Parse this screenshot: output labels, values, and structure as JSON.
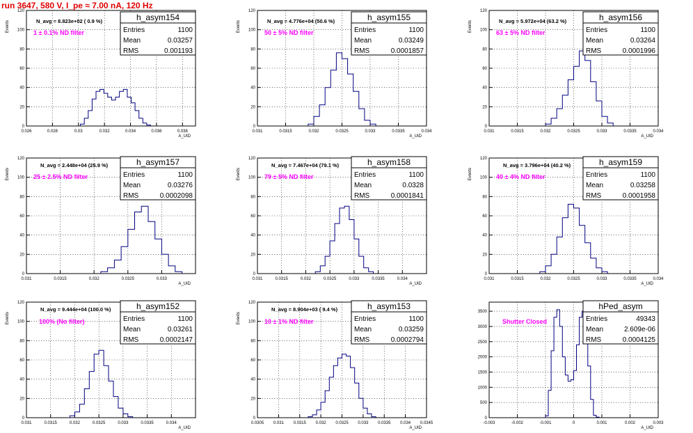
{
  "title": "run 3647,   580 V, I_pe ≈ 7.00 nA, 120 Hz",
  "stats_labels": [
    "Entries",
    "Mean",
    "RMS"
  ],
  "colors": {
    "histogram": "#000080",
    "title": "#e00000",
    "annotation": "#ff00ff"
  },
  "chart_data": [
    {
      "type": "histogram",
      "name": "h_asym154",
      "annotation": "N_avg = 8.823e+02 ( 0.9 %)",
      "filter": "1 ± 0.1% ND filter",
      "xlabel": "A_UID",
      "ylabel": "Events",
      "xlim": [
        0.026,
        0.039
      ],
      "ylim": [
        0,
        120
      ],
      "xticks": [
        "0.026",
        "0.028",
        "0.03",
        "0.032",
        "0.034",
        "0.036",
        "0.038"
      ],
      "yticks": [
        "0",
        "20",
        "40",
        "60",
        "80",
        "100",
        "120"
      ],
      "stats": {
        "Entries": "1100",
        "Mean": "0.03257",
        "RMS": "0.001193"
      },
      "x": [
        0.0303,
        0.0306,
        0.0309,
        0.0312,
        0.0315,
        0.0318,
        0.0321,
        0.0324,
        0.0327,
        0.033,
        0.0333,
        0.0336,
        0.0339,
        0.0342,
        0.0345,
        0.0348,
        0.0351,
        0.0354
      ],
      "counts": [
        2,
        8,
        16,
        28,
        36,
        38,
        34,
        30,
        27,
        30,
        36,
        38,
        30,
        24,
        16,
        8,
        3,
        1
      ]
    },
    {
      "type": "histogram",
      "name": "h_asym155",
      "annotation": "N_avg = 4.776e+04 (50.6 %)",
      "filter": "50 ± 5% ND filter",
      "xlabel": "A_UID",
      "ylabel": "Events",
      "xlim": [
        0.031,
        0.034
      ],
      "ylim": [
        0,
        120
      ],
      "xticks": [
        "0.031",
        "0.0315",
        "0.032",
        "0.0325",
        "0.033",
        "0.0335",
        "0.034"
      ],
      "yticks": [
        "0",
        "20",
        "40",
        "60",
        "80",
        "100",
        "120"
      ],
      "stats": {
        "Entries": "1100",
        "Mean": "0.03249",
        "RMS": "0.0001857"
      },
      "x": [
        0.03195,
        0.03205,
        0.03215,
        0.03225,
        0.03235,
        0.03245,
        0.03255,
        0.03265,
        0.03275,
        0.03285,
        0.03295,
        0.03305
      ],
      "counts": [
        2,
        10,
        22,
        40,
        58,
        76,
        70,
        54,
        36,
        18,
        6,
        2
      ]
    },
    {
      "type": "histogram",
      "name": "h_asym156",
      "annotation": "N_avg = 5.972e+04 (63.2 %)",
      "filter": "63 ± 5% ND filter",
      "xlabel": "A_UID",
      "ylabel": "Events",
      "xlim": [
        0.031,
        0.034
      ],
      "ylim": [
        0,
        120
      ],
      "xticks": [
        "0.031",
        "0.0315",
        "0.032",
        "0.0325",
        "0.033",
        "0.0335",
        "0.034"
      ],
      "yticks": [
        "0",
        "20",
        "40",
        "60",
        "80",
        "100",
        "120"
      ],
      "stats": {
        "Entries": "1100",
        "Mean": "0.03264",
        "RMS": "0.0001996"
      },
      "x": [
        0.03205,
        0.03215,
        0.03225,
        0.03235,
        0.03245,
        0.03255,
        0.03265,
        0.03275,
        0.03285,
        0.03295,
        0.03305,
        0.03315
      ],
      "counts": [
        2,
        8,
        18,
        32,
        48,
        62,
        78,
        68,
        46,
        26,
        10,
        3
      ]
    },
    {
      "type": "histogram",
      "name": "h_asym157",
      "annotation": "N_avg = 2.448e+04 (25.9 %)",
      "filter": "25 ± 2.5% ND filter",
      "xlabel": "A_UID",
      "ylabel": "Events",
      "xlim": [
        0.031,
        0.0335
      ],
      "ylim": [
        0,
        120
      ],
      "xticks": [
        "0.031",
        "0.0315",
        "0.032",
        "0.0325",
        "0.033"
      ],
      "yticks": [
        "0",
        "20",
        "40",
        "60",
        "80",
        "100",
        "120"
      ],
      "stats": {
        "Entries": "1100",
        "Mean": "0.03276",
        "RMS": "0.0002098"
      },
      "x": [
        0.03215,
        0.03225,
        0.03235,
        0.03245,
        0.03255,
        0.03265,
        0.03275,
        0.03285,
        0.03295,
        0.03305,
        0.03315,
        0.03325
      ],
      "counts": [
        2,
        6,
        14,
        28,
        46,
        64,
        70,
        54,
        36,
        20,
        8,
        2
      ]
    },
    {
      "type": "histogram",
      "name": "h_asym158",
      "annotation": "N_avg = 7.467e+04 (79.1 %)",
      "filter": "79 ± 5% ND filter",
      "xlabel": "A_UID",
      "ylabel": "Events",
      "xlim": [
        0.031,
        0.0345
      ],
      "ylim": [
        0,
        120
      ],
      "xticks": [
        "0.031",
        "0.0315",
        "0.032",
        "0.0325",
        "0.033",
        "0.0335",
        "0.034"
      ],
      "yticks": [
        "0",
        "20",
        "40",
        "60",
        "80",
        "100",
        "120"
      ],
      "stats": {
        "Entries": "1100",
        "Mean": "0.0328",
        "RMS": "0.0001841"
      },
      "x": [
        0.03225,
        0.03235,
        0.03245,
        0.03255,
        0.03265,
        0.03275,
        0.03285,
        0.03295,
        0.03305,
        0.03315,
        0.03325,
        0.03335
      ],
      "counts": [
        2,
        8,
        18,
        34,
        52,
        68,
        70,
        56,
        36,
        18,
        6,
        2
      ]
    },
    {
      "type": "histogram",
      "name": "h_asym159",
      "annotation": "N_avg = 3.796e+04 (40.2 %)",
      "filter": "40 ± 4% ND filter",
      "xlabel": "A_UID",
      "ylabel": "Events",
      "xlim": [
        0.031,
        0.034
      ],
      "ylim": [
        0,
        120
      ],
      "xticks": [
        "0.031",
        "0.0315",
        "0.032",
        "0.0325",
        "0.033",
        "0.0335",
        "0.034"
      ],
      "yticks": [
        "0",
        "20",
        "40",
        "60",
        "80",
        "100",
        "120"
      ],
      "stats": {
        "Entries": "1100",
        "Mean": "0.03258",
        "RMS": "0.0001958"
      },
      "x": [
        0.03195,
        0.03205,
        0.03215,
        0.03225,
        0.03235,
        0.03245,
        0.03255,
        0.03265,
        0.03275,
        0.03285,
        0.03295,
        0.03305
      ],
      "counts": [
        2,
        8,
        20,
        38,
        58,
        72,
        68,
        50,
        32,
        16,
        6,
        2
      ]
    },
    {
      "type": "histogram",
      "name": "h_asym152",
      "annotation": "N_avg = 9.444e+04 (100.0 %)",
      "filter": "100% (No filter)",
      "xlabel": "A_UID",
      "ylabel": "Events",
      "xlim": [
        0.031,
        0.0345
      ],
      "ylim": [
        0,
        120
      ],
      "xticks": [
        "0.031",
        "0.0315",
        "0.032",
        "0.0325",
        "0.033",
        "0.0335",
        "0.034"
      ],
      "yticks": [
        "0",
        "20",
        "40",
        "60",
        "80",
        "100",
        "120"
      ],
      "stats": {
        "Entries": "1100",
        "Mean": "0.03261",
        "RMS": "0.0002147"
      },
      "x": [
        0.03195,
        0.03205,
        0.03215,
        0.03225,
        0.03235,
        0.03245,
        0.03255,
        0.03265,
        0.03275,
        0.03285,
        0.03295,
        0.03305,
        0.03315
      ],
      "counts": [
        2,
        6,
        14,
        30,
        48,
        66,
        70,
        54,
        38,
        22,
        10,
        4,
        1
      ]
    },
    {
      "type": "histogram",
      "name": "h_asym153",
      "annotation": "N_avg = 8.904e+03 ( 9.4 %)",
      "filter": "10 ± 1% ND filter",
      "xlabel": "A_UID",
      "ylabel": "Events",
      "xlim": [
        0.0305,
        0.0345
      ],
      "ylim": [
        0,
        120
      ],
      "xticks": [
        "0.0305",
        "0.031",
        "0.0315",
        "0.032",
        "0.0325",
        "0.033",
        "0.0335",
        "0.034",
        "0.0345"
      ],
      "yticks": [
        "0",
        "20",
        "40",
        "60",
        "80",
        "100",
        "120"
      ],
      "stats": {
        "Entries": "1100",
        "Mean": "0.03259",
        "RMS": "0.0002794"
      },
      "x": [
        0.03175,
        0.03185,
        0.03195,
        0.03205,
        0.03215,
        0.03225,
        0.03235,
        0.03245,
        0.03255,
        0.03265,
        0.03275,
        0.03285,
        0.03295,
        0.03305,
        0.03315,
        0.03325
      ],
      "counts": [
        1,
        3,
        8,
        16,
        28,
        42,
        54,
        62,
        66,
        64,
        52,
        36,
        20,
        10,
        4,
        1
      ]
    },
    {
      "type": "histogram",
      "name": "hPed_asym",
      "annotation": "",
      "filter": "Shutter Closed",
      "xlabel": "A_UID",
      "ylabel": "",
      "xlim": [
        -0.003,
        0.003
      ],
      "ylim": [
        0,
        3800
      ],
      "xticks": [
        "-0.003",
        "-0.002",
        "-0.001",
        "0",
        "0.001",
        "0.002",
        "0.003"
      ],
      "yticks": [
        "0",
        "500",
        "1000",
        "1500",
        "2000",
        "2500",
        "3000",
        "3500"
      ],
      "stats": {
        "Entries": "49343",
        "Mean": "2.609e-06",
        "RMS": "0.0004125"
      },
      "x": [
        -0.00095,
        -0.00085,
        -0.00075,
        -0.00065,
        -0.00055,
        -0.00045,
        -0.00035,
        -0.00025,
        -0.00015,
        -5e-05,
        5e-05,
        0.00015,
        0.00025,
        0.00035,
        0.00045,
        0.00055,
        0.00065,
        0.00075,
        0.00085
      ],
      "counts": [
        60,
        900,
        2200,
        3300,
        3550,
        3000,
        2000,
        1400,
        1200,
        1250,
        1550,
        2400,
        3300,
        3500,
        2900,
        1700,
        600,
        80,
        20
      ]
    }
  ]
}
